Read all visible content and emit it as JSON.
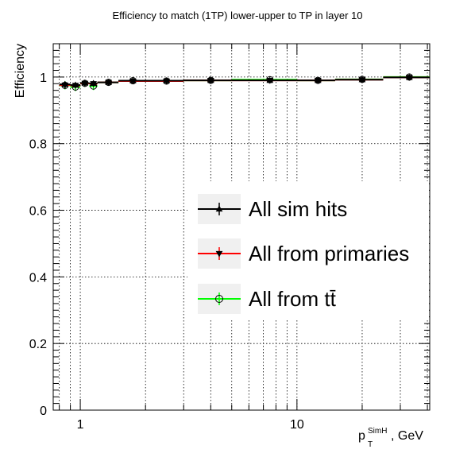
{
  "chart_data": {
    "type": "scatter",
    "title": "Efficiency to match (1TP) lower-upper to TP in layer 10",
    "ylabel": "Efficiency",
    "xlabel": {
      "main": "p",
      "subscript": "T",
      "superscript": "SimH",
      "suffix": ", GeV"
    },
    "xscale": "log",
    "xlim": [
      0.75,
      41
    ],
    "ylim": [
      0,
      1.1
    ],
    "grid": true,
    "x_major_ticks": [
      {
        "value": 1,
        "label": "1"
      },
      {
        "value": 10,
        "label": "10"
      }
    ],
    "y_major_ticks": [
      {
        "value": 0,
        "label": "0"
      },
      {
        "value": 0.2,
        "label": "0.2"
      },
      {
        "value": 0.4,
        "label": "0.4"
      },
      {
        "value": 0.6,
        "label": "0.6"
      },
      {
        "value": 0.8,
        "label": "0.8"
      },
      {
        "value": 1,
        "label": "1"
      }
    ],
    "legend_position": "center-right",
    "series": [
      {
        "name": "All sim hits",
        "color": "#000000",
        "marker": "triangle-up",
        "points": [
          {
            "x": 0.85,
            "xlo": 0.8,
            "xhi": 0.9,
            "y": 0.978,
            "err": 0.008
          },
          {
            "x": 0.95,
            "xlo": 0.9,
            "xhi": 1.0,
            "y": 0.976,
            "err": 0.007
          },
          {
            "x": 1.05,
            "xlo": 1.0,
            "xhi": 1.1,
            "y": 0.982,
            "err": 0.006
          },
          {
            "x": 1.15,
            "xlo": 1.1,
            "xhi": 1.2,
            "y": 0.981,
            "err": 0.006
          },
          {
            "x": 1.35,
            "xlo": 1.2,
            "xhi": 1.5,
            "y": 0.984,
            "err": 0.004
          },
          {
            "x": 1.75,
            "xlo": 1.5,
            "xhi": 2.0,
            "y": 0.989,
            "err": 0.008
          },
          {
            "x": 2.5,
            "xlo": 2.0,
            "xhi": 3.0,
            "y": 0.989,
            "err": 0.006
          },
          {
            "x": 4.0,
            "xlo": 3.0,
            "xhi": 5.0,
            "y": 0.99,
            "err": 0.006
          },
          {
            "x": 7.5,
            "xlo": 5.0,
            "xhi": 10.0,
            "y": 0.99,
            "err": 0.005
          },
          {
            "x": 12.5,
            "xlo": 10.0,
            "xhi": 15.0,
            "y": 0.99,
            "err": 0.004
          },
          {
            "x": 20.0,
            "xlo": 15.0,
            "xhi": 25.0,
            "y": 0.992,
            "err": 0.004
          },
          {
            "x": 33.0,
            "xlo": 25.0,
            "xhi": 41.0,
            "y": 0.999,
            "err": 0.005
          }
        ]
      },
      {
        "name": "All from primaries",
        "color": "#ff0000",
        "marker": "triangle-down",
        "points": [
          {
            "x": 0.85,
            "xlo": 0.8,
            "xhi": 0.9,
            "y": 0.976,
            "err": 0.008
          },
          {
            "x": 0.95,
            "xlo": 0.9,
            "xhi": 1.0,
            "y": 0.975,
            "err": 0.007
          },
          {
            "x": 1.05,
            "xlo": 1.0,
            "xhi": 1.1,
            "y": 0.981,
            "err": 0.006
          },
          {
            "x": 1.15,
            "xlo": 1.1,
            "xhi": 1.2,
            "y": 0.98,
            "err": 0.006
          },
          {
            "x": 1.35,
            "xlo": 1.2,
            "xhi": 1.5,
            "y": 0.984,
            "err": 0.004
          },
          {
            "x": 1.75,
            "xlo": 1.5,
            "xhi": 2.0,
            "y": 0.988,
            "err": 0.008
          },
          {
            "x": 2.5,
            "xlo": 2.0,
            "xhi": 3.0,
            "y": 0.988,
            "err": 0.006
          },
          {
            "x": 4.0,
            "xlo": 3.0,
            "xhi": 5.0,
            "y": 0.99,
            "err": 0.006
          },
          {
            "x": 7.5,
            "xlo": 5.0,
            "xhi": 10.0,
            "y": 0.99,
            "err": 0.005
          },
          {
            "x": 12.5,
            "xlo": 10.0,
            "xhi": 15.0,
            "y": 0.99,
            "err": 0.004
          },
          {
            "x": 20.0,
            "xlo": 15.0,
            "xhi": 25.0,
            "y": 0.992,
            "err": 0.004
          },
          {
            "x": 33.0,
            "xlo": 25.0,
            "xhi": 41.0,
            "y": 0.999,
            "err": 0.005
          }
        ]
      },
      {
        "name": "All from tt̄",
        "color": "#00ff00",
        "marker": "circle-open",
        "points": [
          {
            "x": 0.85,
            "xlo": 0.8,
            "xhi": 0.9,
            "y": 0.975,
            "err": 0.012
          },
          {
            "x": 0.95,
            "xlo": 0.9,
            "xhi": 1.0,
            "y": 0.97,
            "err": 0.012
          },
          {
            "x": 1.05,
            "xlo": 1.0,
            "xhi": 1.1,
            "y": 0.981,
            "err": 0.01
          },
          {
            "x": 1.15,
            "xlo": 1.1,
            "xhi": 1.2,
            "y": 0.973,
            "err": 0.012
          },
          {
            "x": 1.35,
            "xlo": 1.2,
            "xhi": 1.5,
            "y": 0.984,
            "err": 0.006
          },
          {
            "x": 1.75,
            "xlo": 1.5,
            "xhi": 2.0,
            "y": 0.989,
            "err": 0.01
          },
          {
            "x": 2.5,
            "xlo": 2.0,
            "xhi": 3.0,
            "y": 0.988,
            "err": 0.008
          },
          {
            "x": 4.0,
            "xlo": 3.0,
            "xhi": 5.0,
            "y": 0.99,
            "err": 0.007
          },
          {
            "x": 7.5,
            "xlo": 5.0,
            "xhi": 10.0,
            "y": 0.992,
            "err": 0.006
          },
          {
            "x": 12.5,
            "xlo": 10.0,
            "xhi": 15.0,
            "y": 0.99,
            "err": 0.005
          },
          {
            "x": 20.0,
            "xlo": 15.0,
            "xhi": 25.0,
            "y": 0.993,
            "err": 0.005
          },
          {
            "x": 33.0,
            "xlo": 25.0,
            "xhi": 41.0,
            "y": 1.0,
            "err": 0.006
          }
        ]
      }
    ]
  }
}
